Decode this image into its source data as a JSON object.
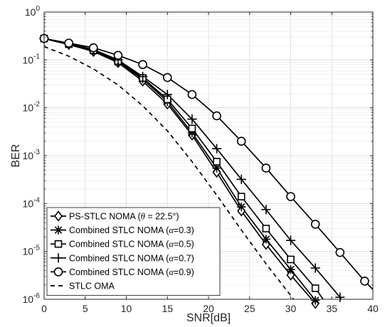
{
  "chart_data": {
    "type": "line",
    "xlabel": "SNR[dB]",
    "ylabel": "BER",
    "xlim": [
      0,
      40
    ],
    "ylim": [
      1e-06,
      1
    ],
    "yscale": "log",
    "grid": true,
    "legend_position": "bottom-left",
    "x_ticks": [
      0,
      5,
      10,
      15,
      20,
      25,
      30,
      35,
      40
    ],
    "y_ticks": [
      {
        "value": 1,
        "exp": "0"
      },
      {
        "value": 0.1,
        "exp": "-1"
      },
      {
        "value": 0.01,
        "exp": "-2"
      },
      {
        "value": 0.001,
        "exp": "-3"
      },
      {
        "value": 0.0001,
        "exp": "-4"
      },
      {
        "value": 1e-05,
        "exp": "-5"
      },
      {
        "value": 1e-06,
        "exp": "-6"
      }
    ],
    "y_tick_base": "10",
    "series": [
      {
        "name": "PS-STLC NOMA (θ = 22.5°)",
        "legend": {
          "prefix": "PS-STLC NOMA (",
          "sym": "θ",
          "suffix": " = 22.5°)"
        },
        "marker": "diamond",
        "line": "solid",
        "x": [
          0,
          3,
          6,
          9,
          12,
          15,
          18,
          21,
          24,
          27,
          30,
          33
        ],
        "y": [
          0.28,
          0.21,
          0.15,
          0.088,
          0.036,
          0.012,
          0.0027,
          0.00045,
          7e-05,
          1.4e-05,
          3.2e-06,
          8.2e-07
        ],
        "curve_end": [
          34,
          5.5e-07
        ]
      },
      {
        "name": "Combined STLC NOMA (α=0.3)",
        "legend": {
          "prefix": "Combined STLC NOMA (",
          "sym": "α",
          "suffix": "=0.3)"
        },
        "marker": "asterisk",
        "line": "solid",
        "x": [
          0,
          3,
          6,
          9,
          12,
          15,
          18,
          21,
          24,
          27,
          30,
          33
        ],
        "y": [
          0.28,
          0.21,
          0.155,
          0.09,
          0.04,
          0.0135,
          0.003,
          0.00055,
          8.5e-05,
          1.8e-05,
          4.2e-06,
          9.5e-07
        ],
        "curve_end": [
          34.3,
          5.5e-07
        ]
      },
      {
        "name": "Combined STLC NOMA (α=0.5)",
        "legend": {
          "prefix": "Combined STLC NOMA (",
          "sym": "α",
          "suffix": "=0.5)"
        },
        "marker": "square",
        "line": "solid",
        "x": [
          0,
          3,
          6,
          9,
          12,
          15,
          18,
          21,
          24,
          27,
          30,
          33
        ],
        "y": [
          0.28,
          0.215,
          0.16,
          0.095,
          0.042,
          0.015,
          0.0037,
          0.00075,
          0.00014,
          3e-05,
          6.8e-06,
          1.7e-06
        ],
        "curve_end": [
          35,
          5.5e-07
        ]
      },
      {
        "name": "Combined STLC NOMA (α=0.7)",
        "legend": {
          "prefix": "Combined STLC NOMA (",
          "sym": "α",
          "suffix": "=0.7)"
        },
        "marker": "plus",
        "line": "solid",
        "x": [
          0,
          3,
          6,
          9,
          12,
          15,
          18,
          21,
          24,
          27,
          30,
          33,
          36
        ],
        "y": [
          0.28,
          0.22,
          0.165,
          0.1,
          0.045,
          0.019,
          0.0058,
          0.0014,
          0.00032,
          7.5e-05,
          1.7e-05,
          4.5e-06,
          1.1e-06
        ],
        "curve_end": [
          37,
          5.5e-07
        ]
      },
      {
        "name": "Combined STLC NOMA (α=0.9)",
        "legend": {
          "prefix": "Combined STLC NOMA (",
          "sym": "α",
          "suffix": "=0.9)"
        },
        "marker": "circle",
        "line": "solid",
        "x": [
          0,
          3,
          6,
          9,
          12,
          15,
          18,
          21,
          24,
          27,
          30,
          33,
          36,
          39
        ],
        "y": [
          0.28,
          0.225,
          0.18,
          0.125,
          0.08,
          0.043,
          0.019,
          0.0068,
          0.002,
          0.00055,
          0.00014,
          3.7e-05,
          9.5e-06,
          2.4e-06
        ],
        "curve_end": [
          40,
          1.6e-06
        ]
      },
      {
        "name": "STLC OMA",
        "legend": {
          "prefix": "STLC OMA",
          "sym": "",
          "suffix": ""
        },
        "marker": "none",
        "line": "dashed",
        "x": [
          0,
          3,
          6,
          9,
          12,
          15,
          18,
          21,
          24,
          27,
          30,
          33
        ],
        "y": [
          0.19,
          0.12,
          0.065,
          0.03,
          0.011,
          0.0033,
          0.00075,
          0.00015,
          2.8e-05,
          5.5e-06,
          1.2e-06,
          2.5e-07
        ]
      }
    ]
  }
}
